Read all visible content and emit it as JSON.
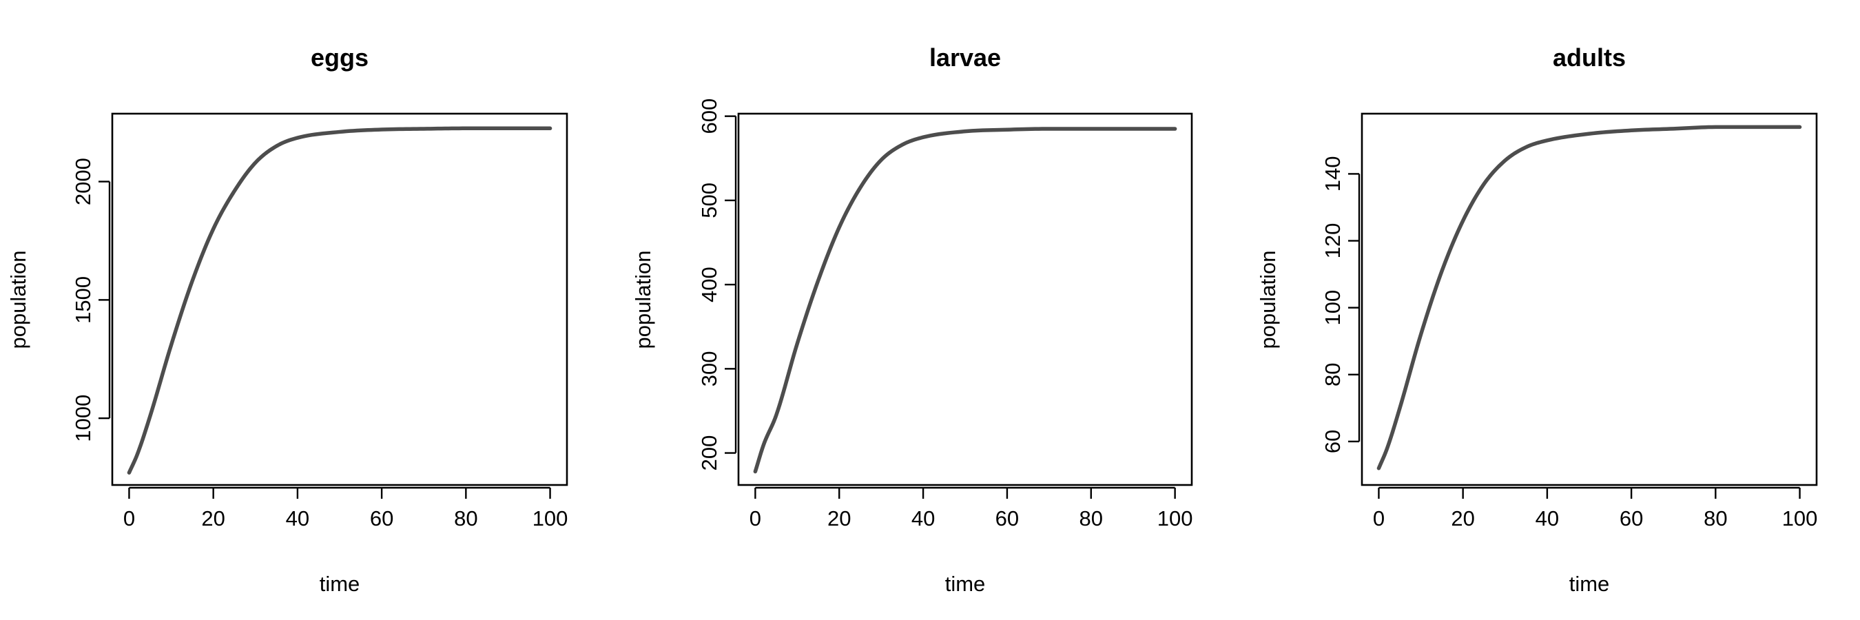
{
  "chart_data": [
    {
      "type": "line",
      "title": "eggs",
      "xlabel": "time",
      "ylabel": "population",
      "xlim": [
        -4,
        104
      ],
      "ylim": [
        718,
        2287
      ],
      "xticks": [
        0,
        20,
        40,
        60,
        80,
        100
      ],
      "yticks": [
        1000,
        1500,
        2000
      ],
      "line_color": "#4d4d4d",
      "series": [
        {
          "x": [
            0,
            2,
            5,
            10,
            15,
            20,
            25,
            30,
            35,
            40,
            50,
            60,
            70,
            80,
            90,
            100
          ],
          "values": [
            770,
            850,
            1010,
            1310,
            1580,
            1800,
            1960,
            2080,
            2150,
            2185,
            2210,
            2220,
            2223,
            2225,
            2225,
            2225
          ]
        }
      ]
    },
    {
      "type": "line",
      "title": "larvae",
      "xlabel": "time",
      "ylabel": "population",
      "xlim": [
        -4,
        104
      ],
      "ylim": [
        162,
        603
      ],
      "xticks": [
        0,
        20,
        40,
        60,
        80,
        100
      ],
      "yticks": [
        200,
        300,
        400,
        500,
        600
      ],
      "line_color": "#4d4d4d",
      "series": [
        {
          "x": [
            0,
            2,
            5,
            10,
            15,
            20,
            25,
            30,
            35,
            40,
            50,
            60,
            70,
            80,
            90,
            100
          ],
          "values": [
            178,
            210,
            245,
            330,
            405,
            468,
            515,
            548,
            566,
            575,
            582,
            584,
            585,
            585,
            585,
            585
          ]
        }
      ]
    },
    {
      "type": "line",
      "title": "adults",
      "xlabel": "time",
      "ylabel": "population",
      "xlim": [
        -4,
        104
      ],
      "ylim": [
        47,
        158
      ],
      "xticks": [
        0,
        20,
        40,
        60,
        80,
        100
      ],
      "yticks": [
        60,
        80,
        100,
        120,
        140
      ],
      "line_color": "#4d4d4d",
      "series": [
        {
          "x": [
            0,
            2,
            5,
            10,
            15,
            20,
            25,
            30,
            35,
            40,
            50,
            60,
            70,
            80,
            90,
            100
          ],
          "values": [
            52,
            58,
            70,
            92,
            111,
            126,
            137,
            144,
            148,
            150,
            152,
            153,
            153.5,
            154,
            154,
            154
          ]
        }
      ]
    }
  ]
}
